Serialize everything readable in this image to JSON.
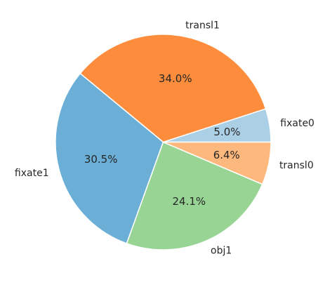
{
  "chart_data": {
    "type": "pie",
    "categories": [
      "fixate0",
      "transl1",
      "fixate1",
      "obj1",
      "transl0"
    ],
    "values": [
      5.0,
      34.0,
      30.5,
      24.1,
      6.4
    ],
    "value_labels": [
      "5.0%",
      "34.0%",
      "30.5%",
      "24.1%",
      "6.4%"
    ],
    "colors": [
      "#abd0e6",
      "#fd8d3c",
      "#6baed6",
      "#98d594",
      "#fdb97d"
    ],
    "start_angle_deg": 0,
    "direction": "counterclockwise",
    "legend": "none",
    "title": ""
  }
}
